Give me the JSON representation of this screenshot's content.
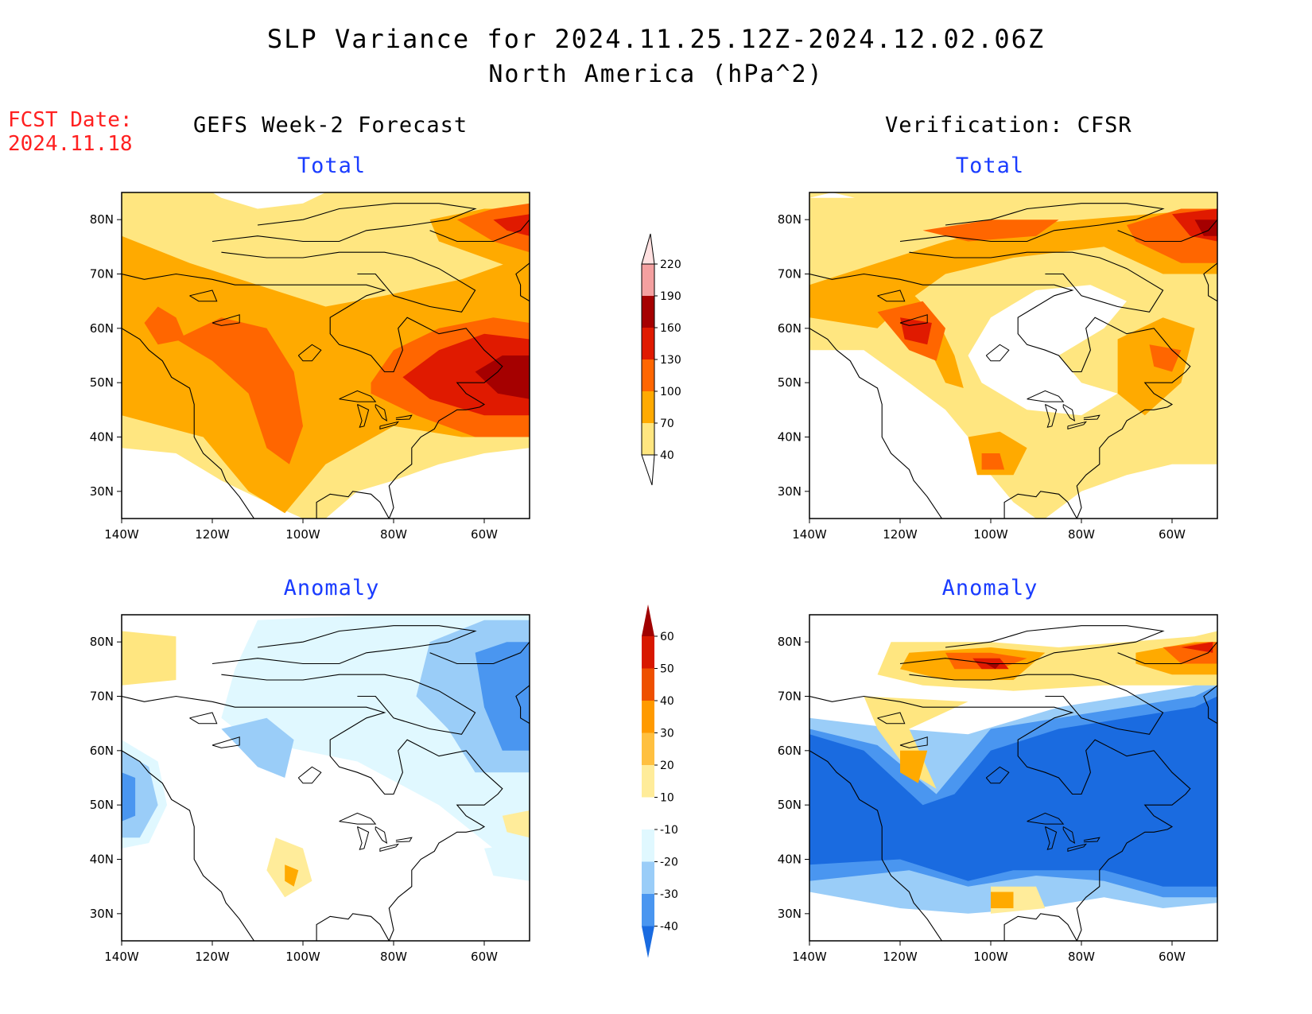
{
  "header": {
    "title": "SLP Variance for 2024.11.25.12Z-2024.12.02.06Z",
    "subtitle": "North America (hPa^2)",
    "fcst_label": "FCST Date:",
    "fcst_date": "2024.11.18"
  },
  "columns": {
    "left": "GEFS Week-2 Forecast",
    "right": "Verification: CFSR"
  },
  "panels": {
    "top_left": "Total",
    "top_right": "Total",
    "bottom_left": "Anomaly",
    "bottom_right": "Anomaly"
  },
  "axes": {
    "lon_labels": [
      "140W",
      "120W",
      "100W",
      "80W",
      "60W"
    ],
    "lat_labels": [
      "80N",
      "70N",
      "60N",
      "50N",
      "40N",
      "30N"
    ]
  },
  "colorbar_total": {
    "labels": [
      "40",
      "70",
      "100",
      "130",
      "160",
      "190",
      "220"
    ],
    "colors": [
      "#ffe680",
      "#ffaa00",
      "#ff6600",
      "#e01a00",
      "#a50000",
      "#f4a0a0",
      "#ffe0e0"
    ]
  },
  "colorbar_anomaly": {
    "labels": [
      "-40",
      "-30",
      "-20",
      "-10",
      "10",
      "20",
      "30",
      "40",
      "50",
      "60"
    ],
    "colors": [
      "#1a6be0",
      "#4a96f0",
      "#9acdf8",
      "#e0f8ff",
      "#ffffff",
      "#ffec9a",
      "#ffc040",
      "#ff9a00",
      "#ee5000",
      "#d81800",
      "#a00000"
    ]
  },
  "map_colors": {
    "land_line": "#000000",
    "white": "#ffffff",
    "light_yellow": "#ffe680",
    "orange": "#ffaa00",
    "dark_orange": "#ff6600",
    "red": "#e01a00",
    "dark_red": "#a50000",
    "blue": "#1a6be0",
    "mid_blue": "#4a96f0",
    "light_blue": "#9acdf8",
    "pale_blue": "#e0f8ff",
    "pale_yellow": "#ffec9a"
  }
}
